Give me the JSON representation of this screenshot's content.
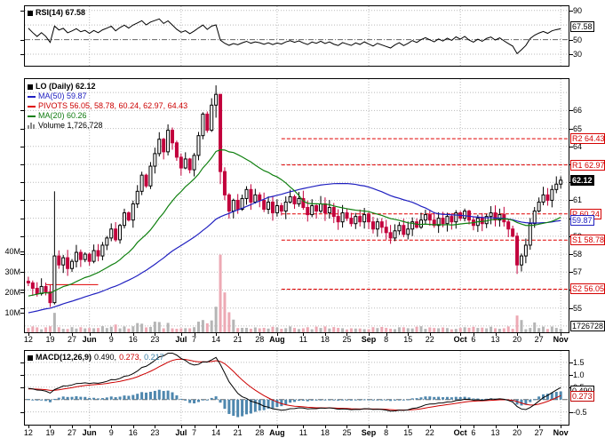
{
  "rsi": {
    "legend": "RSI(14) 67.58",
    "value_label": "67.58",
    "axis_ticks": [
      90,
      50,
      30
    ],
    "gridlines": [
      90,
      70,
      30
    ],
    "centerline": 50,
    "domain": [
      13,
      97
    ]
  },
  "main": {
    "legend_symbol": "LO (Daily) 62.12",
    "legend_ma50": "MA(50) 59.87",
    "legend_pivots": "PIVOTS 56.05, 58.78, 60.24, 62.97, 64.43",
    "legend_ma20": "MA(20) 60.26",
    "legend_volume": "Volume 1,726,728",
    "price_ticks": [
      66,
      65,
      64,
      63,
      62,
      61,
      60,
      59,
      58,
      57,
      56,
      55
    ],
    "axis_boxes": [
      {
        "label": "R2 64.43",
        "value": 64.43,
        "kind": "pivot"
      },
      {
        "label": "R1 62.97",
        "value": 62.97,
        "kind": "pivot"
      },
      {
        "label": "62.12",
        "value": 62.12,
        "kind": "last"
      },
      {
        "label": "P 60.24",
        "value": 60.24,
        "kind": "pivot"
      },
      {
        "label": "59.87",
        "value": 59.87,
        "kind": "ma50"
      },
      {
        "label": "S1 58.78",
        "value": 58.78,
        "kind": "pivot"
      },
      {
        "label": "S2 56.05",
        "value": 56.05,
        "kind": "pivot"
      }
    ],
    "volume_ticks": [
      {
        "label": "40M",
        "value": 40
      },
      {
        "label": "30M",
        "value": 30
      },
      {
        "label": "20M",
        "value": 20
      },
      {
        "label": "10M",
        "value": 10
      }
    ],
    "volume_last_label": "1726728",
    "pivot_levels": [
      56.05,
      58.78,
      60.24,
      62.97,
      64.43
    ],
    "pivot_start_index": 58,
    "early_segment": {
      "price": 56.3,
      "from": 4,
      "to": 16
    },
    "domain": [
      53.6,
      67.8
    ]
  },
  "macd": {
    "legend_name": "MACD(12,26,9)",
    "legend_values": [
      {
        "text": "0.490,",
        "color": "#000000"
      },
      {
        "text": "0.273,",
        "color": "#CC0000"
      },
      {
        "text": "0.217",
        "color": "#3A7FA6"
      }
    ],
    "axis_ticks": [
      {
        "label": "1.5",
        "value": 1.5
      },
      {
        "label": "1.0",
        "value": 1.0
      },
      {
        "label": "0.5",
        "value": 0.5
      },
      {
        "label": "-0.5",
        "value": -0.5
      }
    ],
    "axis_boxes": [
      {
        "label": "0.490",
        "value": 0.49,
        "kind": "macd"
      },
      {
        "label": "0.273",
        "value": 0.273,
        "kind": "signal"
      }
    ],
    "domain": [
      -1.05,
      2.0
    ]
  },
  "colors": {
    "up_candle": "#FFFFFF",
    "up_border": "#000000",
    "down_candle": "#C2003C",
    "ma50": "#2020C0",
    "ma20": "#108010",
    "pivot": "#E00000",
    "rsi_line": "#000000",
    "macd_line": "#000000",
    "signal_line": "#CC0000",
    "histogram": "#4E87AE",
    "vol_up": "#B5B5B5",
    "vol_down": "#EDA9B4",
    "grid": "#BBBBBB"
  },
  "chart_data": {
    "type": "candlestick",
    "symbol": "LO",
    "timeframe": "Daily",
    "last_close": 62.12,
    "volume_last": 1726728,
    "overlays": {
      "ma20_last": 60.26,
      "ma50_last": 59.87,
      "pivots": [
        56.05,
        58.78,
        60.24,
        62.97,
        64.43
      ]
    },
    "rsi": {
      "period": 14,
      "last": 67.58
    },
    "macd": {
      "params": [
        12,
        26,
        9
      ],
      "last_macd": 0.49,
      "last_signal": 0.273,
      "last_histogram": 0.217
    },
    "closes": [
      56.4,
      56.1,
      55.8,
      56.2,
      55.9,
      55.3,
      57.9,
      57.4,
      57.8,
      57.2,
      57.6,
      58.1,
      57.7,
      58.0,
      57.6,
      58.2,
      57.9,
      58.5,
      58.9,
      59.4,
      58.8,
      59.6,
      60.3,
      59.9,
      60.8,
      61.5,
      62.4,
      61.8,
      62.9,
      63.6,
      64.4,
      63.7,
      64.9,
      64.2,
      63.4,
      62.8,
      63.3,
      62.7,
      63.5,
      64.6,
      65.8,
      64.9,
      66.3,
      66.9,
      62.6,
      61.3,
      60.4,
      61.0,
      60.5,
      61.1,
      61.6,
      60.9,
      61.3,
      61.0,
      60.5,
      60.9,
      60.3,
      60.7,
      60.4,
      60.9,
      61.2,
      60.8,
      61.1,
      60.6,
      60.2,
      60.7,
      60.4,
      60.8,
      60.3,
      60.6,
      60.1,
      59.8,
      60.3,
      60.0,
      59.7,
      60.1,
      59.8,
      60.2,
      59.8,
      59.4,
      59.8,
      59.5,
      59.2,
      58.9,
      59.3,
      59.6,
      59.1,
      59.4,
      59.8,
      59.5,
      59.9,
      60.2,
      59.9,
      59.6,
      60.0,
      59.7,
      60.1,
      59.8,
      60.3,
      60.0,
      60.4,
      59.9,
      59.6,
      60.0,
      59.7,
      60.1,
      60.3,
      59.9,
      60.2,
      59.8,
      59.4,
      59.0,
      57.4,
      57.9,
      58.5,
      59.7,
      60.4,
      60.9,
      61.3,
      61.0,
      61.6,
      61.9,
      62.12
    ],
    "preroll": {
      "start": 52.5,
      "end": 56.2,
      "count": 60
    },
    "range_overrides": {
      "6": [
        55.2,
        61.5
      ],
      "43": [
        65.6,
        67.4
      ],
      "44": [
        61.9,
        66.8
      ],
      "112": [
        56.9,
        59.2
      ]
    },
    "volume_base_millions": [
      1.4,
      3.0
    ],
    "volume_overrides_millions": {
      "6": 9.5,
      "20": 3.8,
      "25": 4.5,
      "26": 4.2,
      "29": 5.2,
      "30": 5.0,
      "32": 4.6,
      "39": 5.2,
      "40": 6.0,
      "41": 4.4,
      "42": 5.8,
      "43": 12.5,
      "44": 38.0,
      "45": 19.5,
      "46": 9.8,
      "47": 6.2,
      "112": 8.2,
      "113": 6.0,
      "116": 4.8,
      "122": 1.726728
    },
    "volume_scale": {
      "ticks_millions": [
        10,
        20,
        30,
        40
      ]
    },
    "month_gridline_indices": [
      14,
      35,
      57,
      78,
      99,
      122
    ],
    "x_ticks": [
      {
        "i": 0,
        "label": "12"
      },
      {
        "i": 5,
        "label": "19"
      },
      {
        "i": 10,
        "label": "27"
      },
      {
        "i": 14,
        "label": "Jun",
        "month": true
      },
      {
        "i": 19,
        "label": "9"
      },
      {
        "i": 24,
        "label": "16"
      },
      {
        "i": 29,
        "label": "23"
      },
      {
        "i": 35,
        "label": "Jul",
        "month": true
      },
      {
        "i": 38,
        "label": "7"
      },
      {
        "i": 43,
        "label": "14"
      },
      {
        "i": 48,
        "label": "21"
      },
      {
        "i": 53,
        "label": "28"
      },
      {
        "i": 57,
        "label": "Aug",
        "month": true
      },
      {
        "i": 63,
        "label": "11"
      },
      {
        "i": 68,
        "label": "18"
      },
      {
        "i": 73,
        "label": "25"
      },
      {
        "i": 78,
        "label": "Sep",
        "month": true
      },
      {
        "i": 82,
        "label": "8"
      },
      {
        "i": 87,
        "label": "15"
      },
      {
        "i": 92,
        "label": "22"
      },
      {
        "i": 99,
        "label": "Oct",
        "month": true
      },
      {
        "i": 102,
        "label": "6"
      },
      {
        "i": 107,
        "label": "13"
      },
      {
        "i": 112,
        "label": "20"
      },
      {
        "i": 117,
        "label": "27"
      },
      {
        "i": 122,
        "label": "Nov",
        "month": true
      }
    ]
  }
}
